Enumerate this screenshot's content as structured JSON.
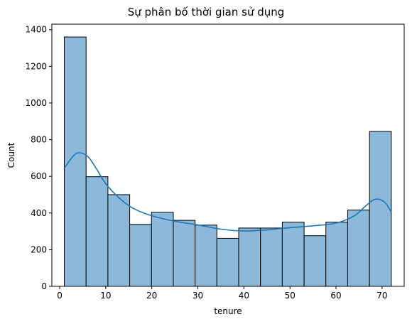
{
  "chart_data": {
    "type": "bar",
    "subtype": "histogram-with-kde",
    "title": "Sự phân bố thời gian sử dụng",
    "xlabel": "tenure",
    "ylabel": "Count",
    "xlim": [
      -1.7,
      74.8
    ],
    "ylim": [
      0,
      1430
    ],
    "xticks": [
      0,
      10,
      20,
      30,
      40,
      50,
      60,
      70
    ],
    "yticks": [
      0,
      200,
      400,
      600,
      800,
      1000,
      1200,
      1400
    ],
    "bin_edges": [
      1,
      5.73,
      10.47,
      15.2,
      19.93,
      24.67,
      29.4,
      34.13,
      38.87,
      43.6,
      48.33,
      53.07,
      57.8,
      62.53,
      67.27,
      72
    ],
    "values": [
      1360,
      598,
      500,
      338,
      404,
      360,
      334,
      262,
      318,
      318,
      350,
      276,
      350,
      416,
      845
    ],
    "kde": {
      "x": [
        1,
        3.6,
        6,
        8,
        10,
        13,
        16,
        20,
        25,
        30,
        35,
        40,
        45,
        50,
        55,
        60,
        64,
        66.5,
        68.5,
        70.5,
        72
      ],
      "y": [
        645,
        725,
        710,
        640,
        560,
        480,
        425,
        385,
        355,
        335,
        312,
        302,
        308,
        320,
        330,
        345,
        385,
        440,
        475,
        460,
        405
      ]
    },
    "colors": {
      "bar_fill": "#8cb9d9",
      "bar_edge": "#000000",
      "kde_line": "#1f77b4"
    },
    "grid": false,
    "legend": "none"
  }
}
